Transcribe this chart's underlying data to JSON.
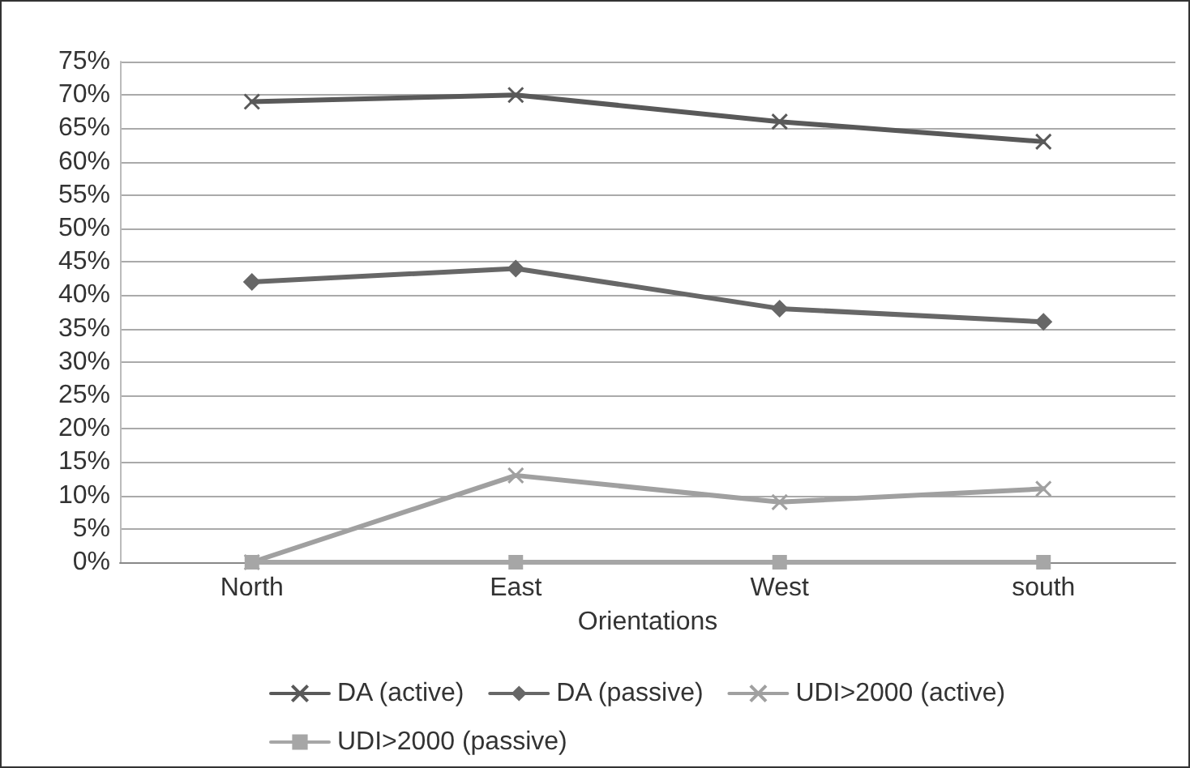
{
  "chart_data": {
    "type": "line",
    "xlabel": "Orientations",
    "categories": [
      "North",
      "East",
      "West",
      "south"
    ],
    "series": [
      {
        "name": "DA (active)",
        "color": "#595959",
        "marker": "cross",
        "values": [
          69,
          70,
          66,
          63
        ]
      },
      {
        "name": "DA (passive)",
        "color": "#676767",
        "marker": "diamond",
        "values": [
          42,
          44,
          38,
          36
        ]
      },
      {
        "name": "UDI>2000 (active)",
        "color": "#a0a0a0",
        "marker": "cross",
        "values": [
          0,
          13,
          9,
          11
        ]
      },
      {
        "name": "UDI>2000 (passive)",
        "color": "#a6a6a6",
        "marker": "square",
        "values": [
          0,
          0,
          0,
          0
        ]
      }
    ],
    "ylim": [
      0,
      75
    ],
    "yticks": [
      {
        "value": 0,
        "label": "0%"
      },
      {
        "value": 5,
        "label": "5%"
      },
      {
        "value": 10,
        "label": "10%"
      },
      {
        "value": 15,
        "label": "15%"
      },
      {
        "value": 20,
        "label": "20%"
      },
      {
        "value": 25,
        "label": "25%"
      },
      {
        "value": 30,
        "label": "30%"
      },
      {
        "value": 35,
        "label": "35%"
      },
      {
        "value": 40,
        "label": "40%"
      },
      {
        "value": 45,
        "label": "45%"
      },
      {
        "value": 50,
        "label": "50%"
      },
      {
        "value": 55,
        "label": "55%"
      },
      {
        "value": 60,
        "label": "60%"
      },
      {
        "value": 65,
        "label": "65%"
      },
      {
        "value": 70,
        "label": "70%"
      },
      {
        "value": 75,
        "label": "75%"
      }
    ],
    "grid": "y",
    "legend": "bottom",
    "line_style": "solid"
  }
}
